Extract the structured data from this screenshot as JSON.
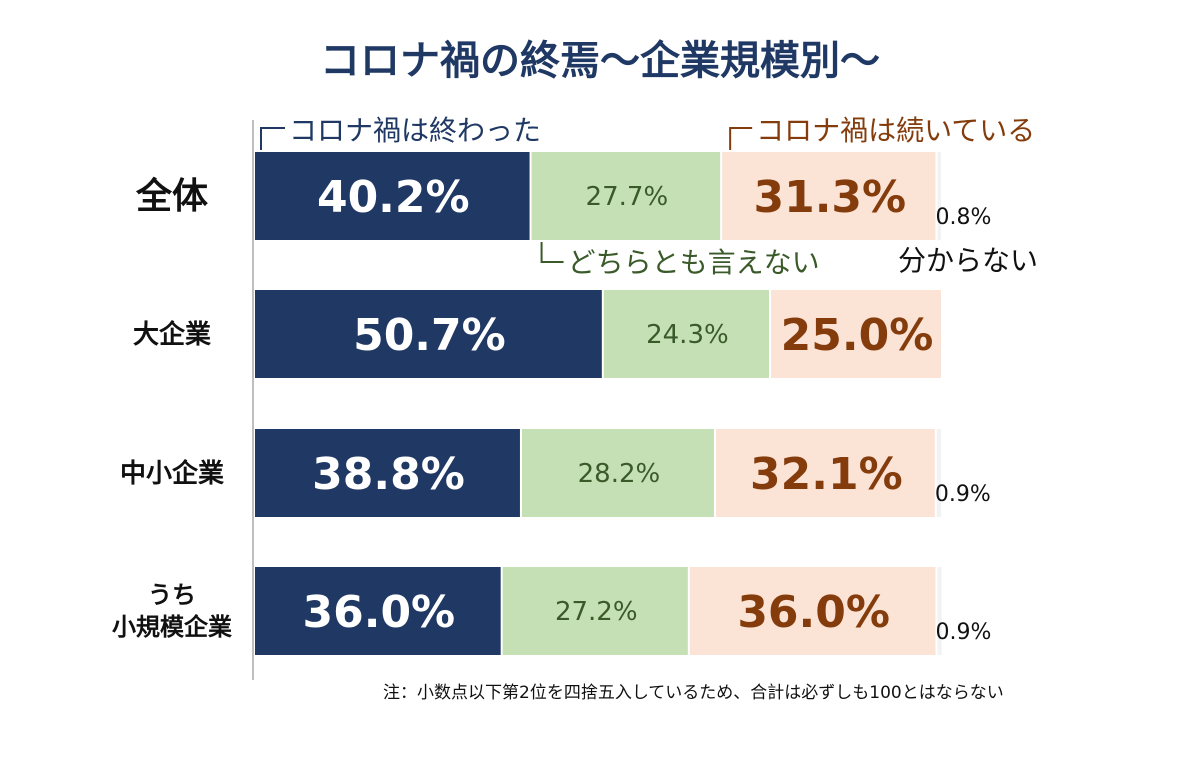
{
  "chart_data": {
    "type": "bar",
    "orientation": "horizontal",
    "stacked": true,
    "title": "コロナ禍の終焉～企業規模別～",
    "categories": [
      "全体",
      "大企業",
      "中小企業",
      "うち\n小規模企業"
    ],
    "series": [
      {
        "name": "コロナ禍は終わった",
        "values": [
          40.2,
          50.7,
          38.8,
          36.0
        ],
        "labels": [
          "40.2%",
          "50.7%",
          "38.8%",
          "36.0%"
        ],
        "color": "#1f3864",
        "text_color": "#ffffff"
      },
      {
        "name": "どちらとも言えない",
        "values": [
          27.7,
          24.3,
          28.2,
          27.2
        ],
        "labels": [
          "27.7%",
          "24.3%",
          "28.2%",
          "27.2%"
        ],
        "color": "#c5e0b4",
        "text_color": "#3a5a2a"
      },
      {
        "name": "コロナ禍は続いている",
        "values": [
          31.3,
          25.0,
          32.1,
          36.0
        ],
        "labels": [
          "31.3%",
          "25.0%",
          "32.1%",
          "36.0%"
        ],
        "color": "#fbe3d6",
        "text_color": "#843c0c"
      },
      {
        "name": "分からない",
        "values": [
          0.8,
          0.0,
          0.9,
          0.9
        ],
        "labels": [
          "0.8%",
          "",
          "0.9%",
          "0.9%"
        ],
        "color": "#f2f2f2",
        "text_color": "#111111"
      }
    ],
    "note": "注：小数点以下第2位を四捨五入しているため、合計は必ずしも100とはならない",
    "xlim": [
      0,
      100
    ],
    "grid": false,
    "colors": {
      "title": "#1f3864",
      "axis": "#bfbfbf",
      "callout_ended": "#1f3864",
      "callout_neutral": "#3a5a2a",
      "callout_ongoing": "#843c0c",
      "callout_unknown": "#111111"
    }
  }
}
